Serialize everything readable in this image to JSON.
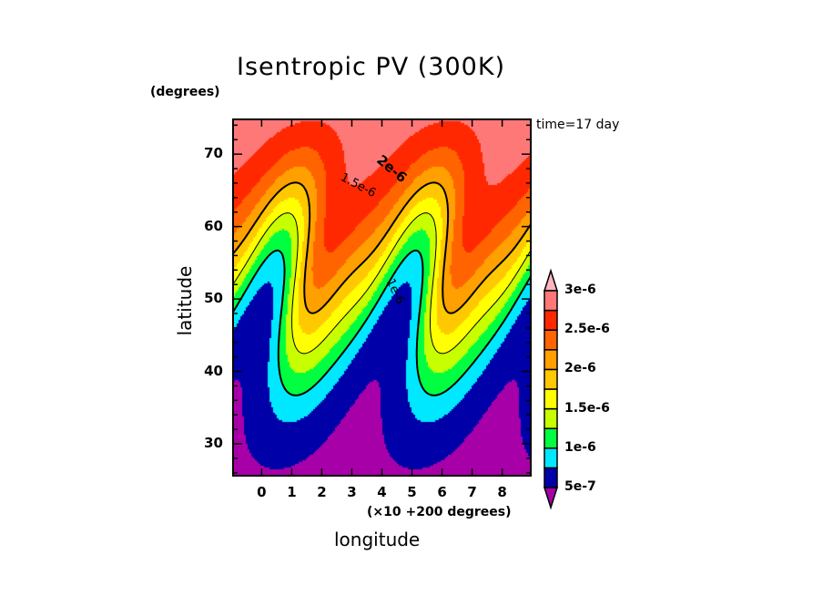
{
  "chart_data": {
    "type": "heatmap",
    "subtype": "filled-contour",
    "title": "Isentropic PV (300K)",
    "xlabel": "longitude",
    "xunits": "(×10 +200 degrees)",
    "ylabel": "latitude",
    "yunits": "(degrees)",
    "annotation": "time=17 day",
    "xlim": [
      -0.95,
      8.95
    ],
    "ylim": [
      25.6,
      74.8
    ],
    "xticks": [
      0,
      1,
      2,
      3,
      4,
      5,
      6,
      7,
      8
    ],
    "xtick_labels": [
      "0",
      "1",
      "2",
      "3",
      "4",
      "5",
      "6",
      "7",
      "8"
    ],
    "yticks": [
      30,
      40,
      50,
      60,
      70
    ],
    "ytick_labels": [
      "30",
      "40",
      "50",
      "60",
      "70"
    ],
    "grid": false,
    "colorbar": {
      "placement": "right",
      "extend": "both",
      "levels": [
        5e-07,
        7.5e-07,
        1e-06,
        1.25e-06,
        1.5e-06,
        1.75e-06,
        2e-06,
        2.25e-06,
        2.5e-06,
        2.75e-06,
        3e-06
      ],
      "colors": [
        "#a800a8",
        "#0000a8",
        "#00e8ff",
        "#00ff40",
        "#c8ff00",
        "#ffff00",
        "#ffc800",
        "#ffa000",
        "#ff6400",
        "#ff2800",
        "#ff7878",
        "#ffb4c0"
      ],
      "tick_labels": [
        "5e-7",
        "1e-6",
        "1.5e-6",
        "2e-6",
        "2.5e-6",
        "3e-6"
      ],
      "tick_values": [
        5e-07,
        1e-06,
        1.5e-06,
        2e-06,
        2.5e-06,
        3e-06
      ]
    },
    "contour_lines": [
      {
        "value": 1e-06,
        "label": "1e-6",
        "style": "thick"
      },
      {
        "value": 1.5e-06,
        "label": "1.5e-6",
        "style": "thin"
      },
      {
        "value": 2e-06,
        "label": "2e-6",
        "style": "thick"
      }
    ],
    "description": "Breaking Rossby wave: PV increases poleward; two overturning troughs near longitude 1-3 and 4.5-5.5, low-PV tongues extending north near 3-4 and 7-8."
  }
}
